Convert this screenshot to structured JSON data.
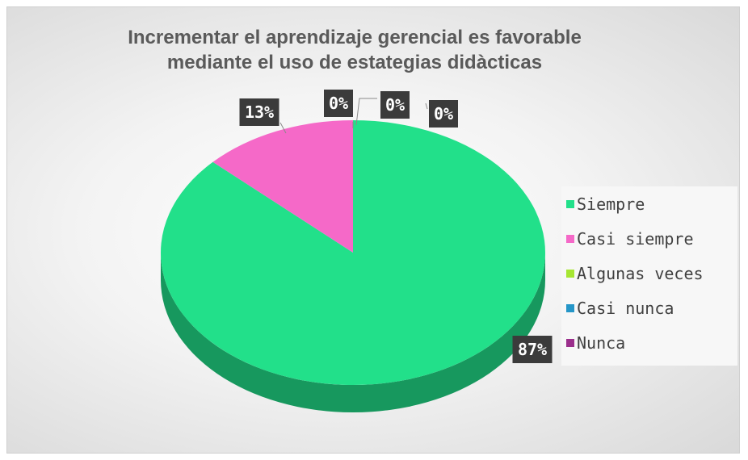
{
  "chart_data": {
    "type": "pie",
    "title_lines": [
      "Incrementar el aprendizaje gerencial es favorable",
      "mediante el uso de estategias didàcticas"
    ],
    "categories": [
      "Siempre",
      "Casi siempre",
      "Algunas veces",
      "Casi nunca",
      "Nunca"
    ],
    "values": [
      87,
      13,
      0,
      0,
      0
    ],
    "data_labels": [
      "87%",
      "13%",
      "0%",
      "0%",
      "0%"
    ],
    "colors": [
      "#22e08a",
      "#f569c8",
      "#a6e632",
      "#2596c8",
      "#9b2f8c"
    ],
    "legend_position": "right",
    "style": "3d"
  }
}
